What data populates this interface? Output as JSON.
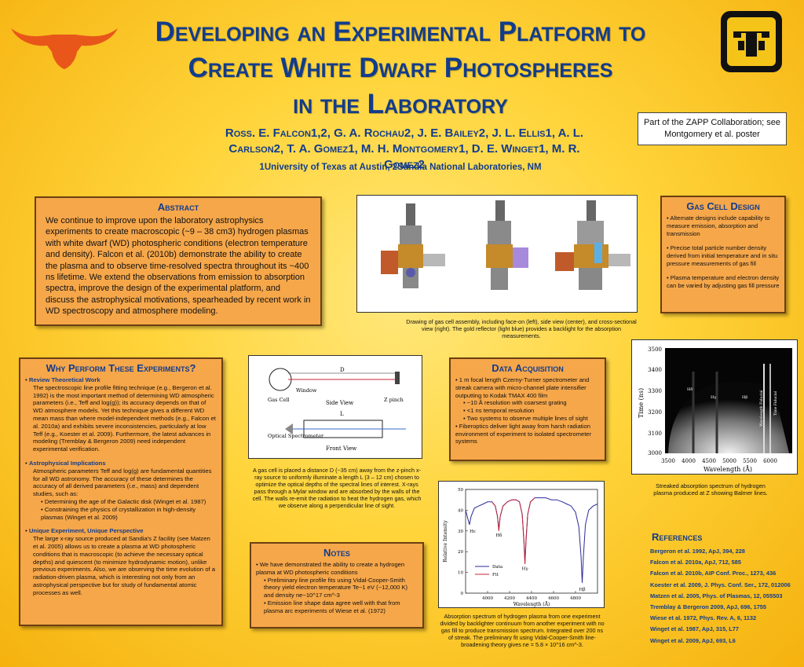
{
  "header": {
    "title_line1": "Developing an Experimental Platform to",
    "title_line2": "Create White Dwarf Photospheres",
    "title_line3": "in the Laboratory",
    "authors": "Ross. E. Falcon1,2, G. A. Rochau2, J. E. Bailey2, J. L. Ellis1, A. L. Carlson2, T. A. Gomez1, M. H. Montgomery1, D. E. Winget1, M. R. Gomez2",
    "affiliations": "1University of Texas at Austin, 2Sandia National Laboratories, NM",
    "zapp_note": "Part of the ZAPP Collaboration; see Montgomery et al. poster"
  },
  "abstract": {
    "heading": "Abstract",
    "text": "We continue to improve upon the laboratory astrophysics experiments to create macroscopic (~9 – 38 cm3) hydrogen plasmas with white dwarf (WD) photospheric conditions (electron temperature and density). Falcon et al. (2010b) demonstrate the ability to create the plasma and to observe time-resolved spectra throughout its ~400 ns lifetime. We extend the observations from emission to absorption spectra, improve the design of the experimental platform, and discuss the astrophysical motivations, spearheaded by recent work in WD spectroscopy and atmosphere modeling."
  },
  "why": {
    "heading": "Why Perform These Experiments?",
    "b1_title": "Review Theoretical Work",
    "b1_text": "The spectroscopic line profile fitting technique (e.g., Bergeron et al. 1992) is the most important method of determining WD atmospheric parameters (i.e., Teff and log(g)); its accuracy depends on that of WD atmosphere models. Yet this technique gives a different WD mean mass than where model-independent methods (e.g., Falcon et al. 2010a) and exhibits severe inconsistencies, particularly at low Teff (e.g., Koester et al. 2009). Furthermore, the latest advances in modeling (Tremblay & Bergeron 2009) need independent experimental verification.",
    "b2_title": "Astrophysical Implications",
    "b2_text": "Atmospheric parameters Teff and log(g) are fundamental quantities for all WD astronomy. The accuracy of these determines the accuracy of all derived parameters (i.e., mass) and dependent studies, such as:",
    "b2_sub1": "Determining the age of the Galactic disk (Winget et al. 1987)",
    "b2_sub2": "Constraining the physics of crystallization in high-density plasmas (Winget et al. 2009)",
    "b3_title": "Unique Experiment, Unique Perspective",
    "b3_text": "The large x-ray source produced at Sandia's Z facility (see Matzen et al. 2005) allows us to create a plasma at WD photospheric conditions that is macroscopic (to achieve the necessary optical depths) and quiescent (to minimize hydrodynamic motion), unlike previous experiments. Also, we are observing the time evolution of a radiation-driven plasma, which is interesting not only from an astrophysical perspective but for study of fundamental atomic processes as well."
  },
  "assembly_fig": {
    "caption": "Drawing of gas cell assembly, including face-on (left), side view (center), and cross-sectional view (right). The gold reflector (light blue) provides a backlight for the absorption measurements."
  },
  "geometry_fig": {
    "label_D": "D",
    "label_L": "L",
    "label_window": "Window",
    "label_gascell": "Gas Cell",
    "label_sideview": "Side View",
    "label_zpinch": "Z pinch",
    "label_optical": "Optical Spectrometer",
    "label_frontview": "Front View",
    "caption": "A gas cell is placed a distance D (~35 cm) away from the z-pinch x-ray source to uniformly illuminate a length L (3 – 12 cm) chosen to optimize the optical depths of the spectral lines of interest. X-rays pass through a Mylar window and are absorbed by the walls of the cell. The walls re-emit the radiation to heat the hydrogen gas, which we observe along a perpendicular line of sight."
  },
  "gascell": {
    "heading": "Gas Cell Design",
    "items": [
      "Alternate designs include capability to measure emission, absorption and transmission",
      "Precise total particle number density derived from initial temperature and in situ pressure measurements of gas fill",
      "Plasma temperature and electron density can be varied by adjusting gas fill pressure"
    ]
  },
  "daq": {
    "heading": "Data Acquisition",
    "item1": "1 m focal length Czerny-Turner spectrometer and streak camera with micro-channel plate intensifier outputting to Kodak TMAX 400 film",
    "sub1": "~10 Å resolution with coarsest grating",
    "sub2": "<1 ns temporal resolution",
    "sub3": "Two systems to observe multiple lines of sight",
    "item2": "Fiberoptics deliver light away from harsh radiation environment of experiment to isolated spectrometer systems"
  },
  "notes": {
    "heading": "Notes",
    "item1": "We have demonstrated the ability to create a hydrogen plasma at WD photospheric conditions",
    "sub1": "Preliminary line profile fits using Vidal-Cooper-Smith theory yield electron temperature Te~1 eV (~12,000 K) and density ne~10^17 cm^-3",
    "sub2": "Emission line shape data agree well with that from plasma arc experiments of Wiese et al. (1972)"
  },
  "streak_fig": {
    "ylabel": "Time (ns)",
    "xlabel": "Wavelength (Å)",
    "yticks": [
      "3500",
      "3400",
      "3300",
      "3200",
      "3100",
      "3000"
    ],
    "xticks": [
      "3500",
      "4000",
      "4500",
      "5000",
      "5500",
      "6000"
    ],
    "labels": [
      "Hδ",
      "Hγ",
      "Hβ",
      "Wavelength Fiducial",
      "Time Fiducial"
    ],
    "caption": "Streaked absorption spectrum of hydrogen plasma produced at Z showing Balmer lines."
  },
  "chart_data": {
    "type": "line",
    "xlabel": "Wavelength (Å)",
    "ylabel": "Relative Intensity",
    "xlim": [
      3800,
      5000
    ],
    "ylim": [
      0,
      50
    ],
    "xticks": [
      4000,
      4200,
      4400,
      4600,
      4800
    ],
    "yticks": [
      0,
      10,
      20,
      30,
      40,
      50
    ],
    "line_labels": [
      "Hε",
      "Hδ",
      "Hγ",
      "Hβ"
    ],
    "line_label_x": [
      3835,
      4102,
      4340,
      4861
    ],
    "series": [
      {
        "name": "Data",
        "color": "#2a2a9a",
        "x": [
          3800,
          3820,
          3835,
          3850,
          3880,
          3920,
          3960,
          4000,
          4040,
          4070,
          4090,
          4102,
          4115,
          4140,
          4180,
          4220,
          4260,
          4290,
          4315,
          4330,
          4340,
          4350,
          4365,
          4390,
          4430,
          4480,
          4530,
          4580,
          4630,
          4680,
          4720,
          4760,
          4800,
          4830,
          4850,
          4861,
          4872,
          4890,
          4920,
          4960,
          5000
        ],
        "y": [
          40,
          36,
          33,
          37,
          41,
          42,
          43,
          44,
          44,
          42,
          37,
          31,
          37,
          42,
          44,
          45,
          45,
          44,
          38,
          26,
          15,
          26,
          38,
          44,
          46,
          46,
          46,
          45,
          45,
          44,
          43,
          42,
          39,
          32,
          18,
          5,
          18,
          33,
          40,
          42,
          43
        ]
      },
      {
        "name": "Fit",
        "color": "#c0263a",
        "x": [
          4040,
          4070,
          4090,
          4102,
          4115,
          4140,
          4180,
          4220,
          4260,
          4290,
          4315,
          4330,
          4340,
          4350,
          4365,
          4390,
          4430
        ],
        "y": [
          44,
          42,
          37,
          30,
          37,
          42,
          44,
          45,
          45,
          44,
          38,
          25,
          14,
          25,
          38,
          44,
          46
        ]
      }
    ],
    "caption": "Absorption spectrum of hydrogen plasma from one experiment divided by backlighter continuum from another experiment with no gas fill to produce transmission spectrum. Integrated over 200 ns of streak. The preliminary fit using Vidal-Cooper-Smith line-broadening theory gives ne = 5.8 × 10^16 cm^-3."
  },
  "references": {
    "heading": "References",
    "items": [
      "Bergeron et al. 1992, ApJ, 394, 228",
      "Falcon et al. 2010a, ApJ, 712, 585",
      "Falcon et al. 2010b, AIP Conf. Proc., 1273, 436",
      "Koester et al. 2009, J. Phys. Conf. Ser., 172, 012006",
      "Matzen et al. 2005, Phys. of Plasmas, 12, 055503",
      "Tremblay & Bergeron 2009, ApJ, 696, 1755",
      "Wiese et al. 1972, Phys. Rev. A, 6, 1132",
      "Winget et al. 1987, ApJ, 315, L77",
      "Winget et al. 2009, ApJ, 693, L6"
    ]
  },
  "colors": {
    "title_blue": "#123c8c",
    "box_orange": "#f6a74a",
    "longhorn": "#e8561a"
  },
  "icons": {
    "left_logo": "longhorn-logo",
    "right_logo": "sandia-thunderbird-logo"
  }
}
